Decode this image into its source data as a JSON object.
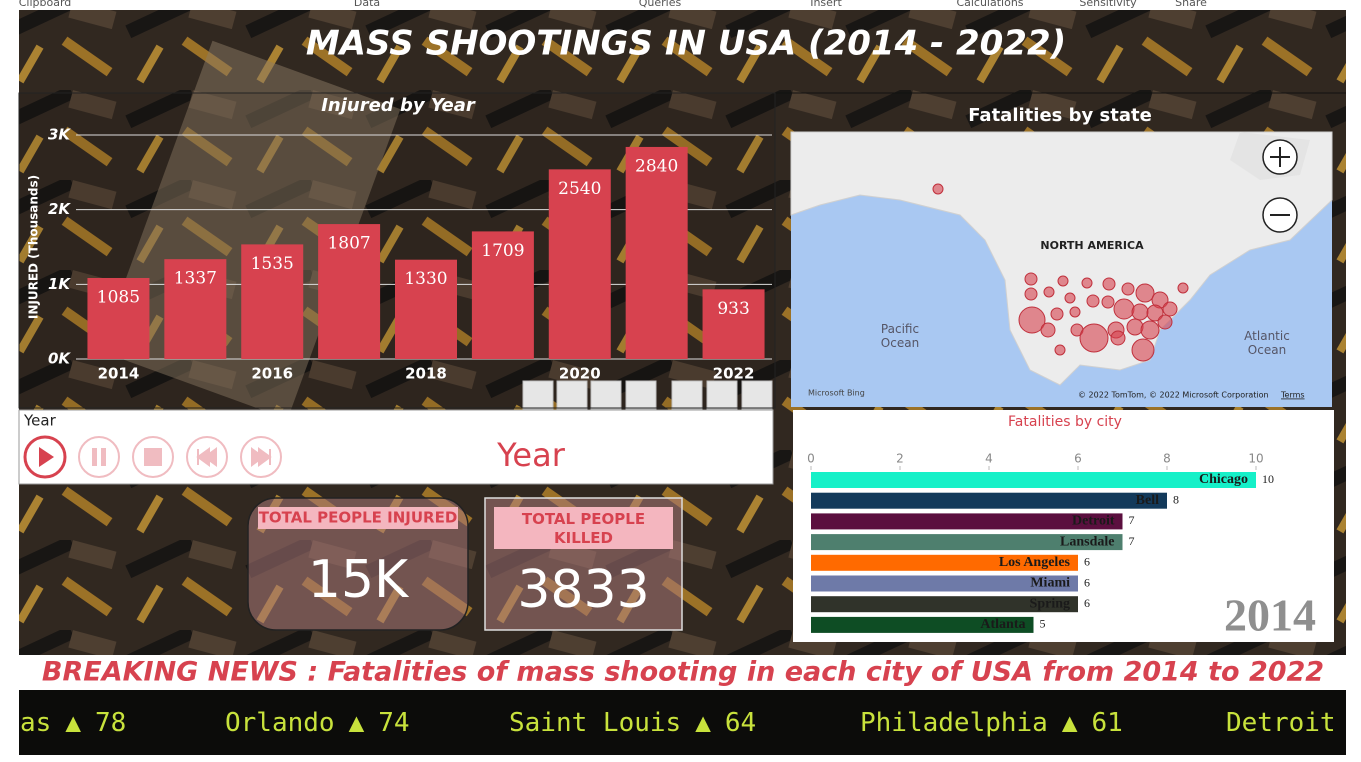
{
  "ribbon": [
    "Clipboard",
    "Data",
    "Queries",
    "Insert",
    "Calculations",
    "Sensitivity",
    "Share"
  ],
  "title": "MASS SHOOTINGS IN USA (2014 - 2022)",
  "chart_data": [
    {
      "type": "bar",
      "title": "Injured by Year",
      "y_label": "INJURED (Thousands)",
      "categories": [
        "2014",
        null,
        "2016",
        null,
        "2018",
        null,
        "2020",
        null,
        "2022"
      ],
      "values": [
        1085,
        1337,
        1535,
        1807,
        1330,
        1709,
        2540,
        2840,
        933
      ],
      "color": "#d7424f",
      "ylim": [
        0,
        3000
      ],
      "yticks": [
        {
          "value": 0,
          "label": "0K"
        },
        {
          "value": 1000,
          "label": "1K"
        },
        {
          "value": 2000,
          "label": "2K"
        },
        {
          "value": 3000,
          "label": "3K"
        }
      ],
      "grid": true
    },
    {
      "type": "map",
      "title": "Fatalities by state",
      "labels": [
        "NORTH AMERICA",
        "Pacific Ocean",
        "Atlantic Ocean"
      ],
      "attribution": "Microsoft Bing",
      "copyright": "© 2022 TomTom, © 2022 Microsoft Corporation",
      "terms": "Terms"
    },
    {
      "type": "barh",
      "title": "Fatalities by city",
      "categories": [
        "Chicago",
        "Bell",
        "Detroit",
        "Lansdale",
        "Los Angeles",
        "Miami",
        "Spring",
        "Atlanta"
      ],
      "values": [
        10,
        8,
        7,
        7,
        6,
        6,
        6,
        5
      ],
      "colors": [
        "#16f0c8",
        "#133a5b",
        "#5b0f3f",
        "#4e7f6e",
        "#ff6a00",
        "#6e7aa8",
        "#30332a",
        "#0e4d24"
      ],
      "xlim": [
        0,
        10
      ],
      "xticks": [
        0,
        2,
        4,
        6,
        8,
        10
      ],
      "annotation": "2014"
    }
  ],
  "slicer": {
    "label": "Year",
    "title": "Year"
  },
  "kpis": [
    {
      "label": "TOTAL PEOPLE INJURED",
      "value": "15K"
    },
    {
      "label": "TOTAL PEOPLE KILLED",
      "value": 3833
    }
  ],
  "news": "BREAKING NEWS : Fatalities of mass shooting in each city of USA from 2014 to 2022",
  "ticker": [
    {
      "city": "as",
      "arrow": "▲",
      "value": 78
    },
    {
      "city": "Orlando",
      "arrow": "▲",
      "value": 74
    },
    {
      "city": "Saint Louis",
      "arrow": "▲",
      "value": 64
    },
    {
      "city": "Philadelphia",
      "arrow": "▲",
      "value": 61
    },
    {
      "city": "Detroit"
    }
  ]
}
